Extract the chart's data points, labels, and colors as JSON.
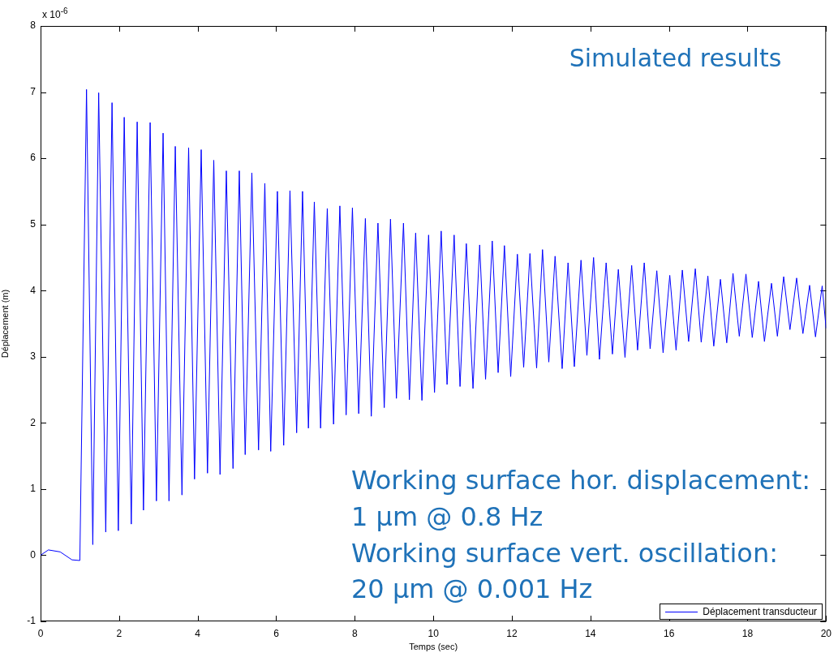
{
  "chart_data": {
    "type": "line",
    "xlabel": "Temps (sec)",
    "ylabel": "Déplacement (m)",
    "xlim": [
      0,
      20
    ],
    "xticks": [
      0,
      2,
      4,
      6,
      8,
      10,
      12,
      14,
      16,
      18,
      20
    ],
    "ylim": [
      -1,
      8
    ],
    "yticks": [
      -1,
      0,
      1,
      2,
      3,
      4,
      5,
      6,
      7,
      8
    ],
    "grid": false,
    "legend": "bottom right",
    "marker": "none",
    "line_style": "solid",
    "annotations": [
      "x 10$^{-6}$",
      "Simulated results",
      "Working surface hor. displacement:\n1 µm @ 0.8 Hz\nWorking surface vert. oscillation:\n20 µm @ 0.001 Hz"
    ],
    "series": [
      {
        "name": "Déplacement transducteur",
        "color": "#0000ff",
        "x": [
          0,
          0.2,
          0.5,
          0.8,
          1.0,
          1.17,
          1.33,
          1.48,
          1.66,
          1.82,
          1.98,
          2.13,
          2.31,
          2.46,
          2.62,
          2.79,
          2.95,
          3.12,
          3.27,
          3.43,
          3.6,
          3.77,
          3.92,
          4.09,
          4.25,
          4.41,
          4.57,
          4.73,
          4.9,
          5.06,
          5.21,
          5.38,
          5.55,
          5.71,
          5.86,
          6.03,
          6.19,
          6.35,
          6.52,
          6.67,
          6.82,
          6.97,
          7.13,
          7.3,
          7.46,
          7.62,
          7.78,
          7.94,
          8.1,
          8.27,
          8.42,
          8.59,
          8.75,
          8.91,
          9.06,
          9.24,
          9.39,
          9.55,
          9.71,
          9.88,
          10.03,
          10.2,
          10.35,
          10.53,
          10.68,
          10.84,
          11.01,
          11.18,
          11.33,
          11.5,
          11.65,
          11.81,
          11.97,
          12.14,
          12.3,
          12.46,
          12.63,
          12.78,
          12.94,
          13.1,
          13.28,
          13.43,
          13.59,
          13.76,
          13.91,
          14.08,
          14.23,
          14.4,
          14.56,
          14.71,
          14.88,
          15.05,
          15.2,
          15.37,
          15.52,
          15.69,
          15.85,
          16.02,
          16.18,
          16.34,
          16.5,
          16.67,
          16.82,
          16.99,
          17.14,
          17.31,
          17.47,
          17.63,
          17.79,
          17.96,
          18.12,
          18.28,
          18.43,
          18.61,
          18.76,
          18.92,
          19.08,
          19.25,
          19.41,
          19.58,
          19.73,
          19.9,
          20
        ],
        "values": [
          0,
          0.08,
          0.05,
          -0.07,
          -0.08,
          7.04,
          0.16,
          6.99,
          0.35,
          6.84,
          0.37,
          6.62,
          0.47,
          6.55,
          0.68,
          6.54,
          0.82,
          6.38,
          0.82,
          6.18,
          0.91,
          6.16,
          1.15,
          6.13,
          1.24,
          5.97,
          1.22,
          5.81,
          1.31,
          5.81,
          1.52,
          5.78,
          1.59,
          5.62,
          1.57,
          5.5,
          1.66,
          5.51,
          1.85,
          5.5,
          1.92,
          5.34,
          1.92,
          5.24,
          1.98,
          5.28,
          2.12,
          5.25,
          2.14,
          5.09,
          2.1,
          5.02,
          2.23,
          5.08,
          2.37,
          5.02,
          2.35,
          4.87,
          2.34,
          4.84,
          2.46,
          4.9,
          2.58,
          4.84,
          2.55,
          4.71,
          2.52,
          4.69,
          2.66,
          4.75,
          2.76,
          4.68,
          2.7,
          4.55,
          2.84,
          4.56,
          2.83,
          4.62,
          2.92,
          4.52,
          2.82,
          4.42,
          2.85,
          4.46,
          3.02,
          4.5,
          2.96,
          4.42,
          3.04,
          4.32,
          2.99,
          4.38,
          3.1,
          4.42,
          3.12,
          4.3,
          3.06,
          4.23,
          3.1,
          4.31,
          3.23,
          4.33,
          3.22,
          4.22,
          3.16,
          4.17,
          3.21,
          4.26,
          3.31,
          4.25,
          3.29,
          4.14,
          3.23,
          4.11,
          3.31,
          4.21,
          3.41,
          4.19,
          3.35,
          4.08,
          3.3,
          4.07,
          3.43
        ]
      }
    ]
  }
}
